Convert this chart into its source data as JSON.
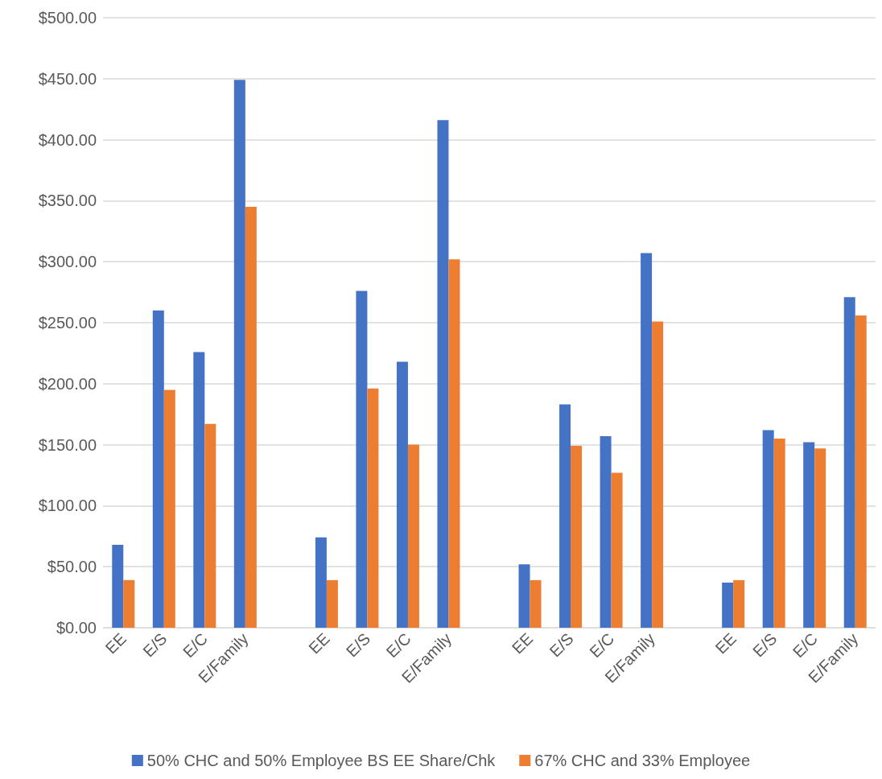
{
  "chart_data": {
    "type": "bar",
    "categories": [
      "EE",
      "E/S",
      "E/C",
      "E/Family",
      null,
      "EE",
      "E/S",
      "E/C",
      "E/Family",
      null,
      "EE",
      "E/S",
      "E/C",
      "E/Family",
      null,
      "EE",
      "E/S",
      "E/C",
      "E/Family"
    ],
    "series": [
      {
        "name": "50% CHC and 50% Employee BS EE Share/Chk",
        "color": "#4472c4",
        "values": [
          68,
          260,
          226,
          449,
          null,
          74,
          276,
          218,
          416,
          null,
          52,
          183,
          157,
          307,
          null,
          37,
          162,
          152,
          271
        ]
      },
      {
        "name": "67% CHC and 33% Employee",
        "color": "#ed7d31",
        "values": [
          39,
          195,
          167,
          345,
          null,
          39,
          196,
          150,
          302,
          null,
          39,
          149,
          127,
          251,
          null,
          39,
          155,
          147,
          256
        ]
      }
    ],
    "ylim": [
      0,
      500
    ],
    "yticks": [
      {
        "value": 0,
        "label": "$0.00"
      },
      {
        "value": 50,
        "label": "$50.00"
      },
      {
        "value": 100,
        "label": "$100.00"
      },
      {
        "value": 150,
        "label": "$150.00"
      },
      {
        "value": 200,
        "label": "$200.00"
      },
      {
        "value": 250,
        "label": "$250.00"
      },
      {
        "value": 300,
        "label": "$300.00"
      },
      {
        "value": 350,
        "label": "$350.00"
      },
      {
        "value": 400,
        "label": "$400.00"
      },
      {
        "value": 450,
        "label": "$450.00"
      },
      {
        "value": 500,
        "label": "$500.00"
      }
    ],
    "grid": "y",
    "legend": "bottom"
  }
}
